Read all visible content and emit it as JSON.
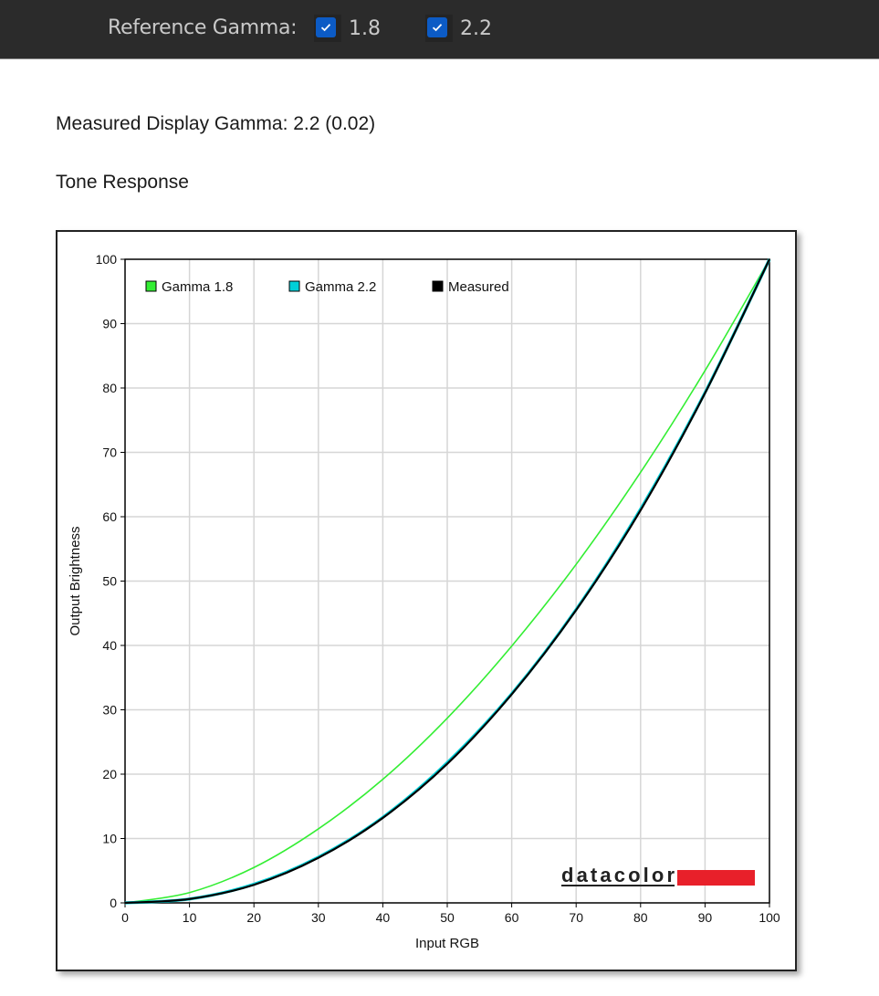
{
  "header": {
    "reference_label": "Reference Gamma:",
    "options": [
      {
        "label": "1.8",
        "checked": true
      },
      {
        "label": "2.2",
        "checked": true
      }
    ]
  },
  "measured_text": "Measured Display Gamma: 2.2 (0.02)",
  "section_title": "Tone Response",
  "logo_text": "datacolor",
  "colors": {
    "checkbox_accent": "#0c5bc5",
    "gamma18": "#33ee33",
    "gamma22": "#00d0d8",
    "measured": "#000000",
    "logo_bar": "#e8202a"
  },
  "chart_data": {
    "type": "line",
    "xlabel": "Input RGB",
    "ylabel": "Output Brightness",
    "xlim": [
      0,
      100
    ],
    "ylim": [
      0,
      100
    ],
    "xticks": [
      0,
      10,
      20,
      30,
      40,
      50,
      60,
      70,
      80,
      90,
      100
    ],
    "yticks": [
      0,
      10,
      20,
      30,
      40,
      50,
      60,
      70,
      80,
      90,
      100
    ],
    "grid": true,
    "legend_position": "top-left",
    "x": [
      0,
      10,
      20,
      30,
      40,
      50,
      60,
      70,
      80,
      90,
      100
    ],
    "series": [
      {
        "name": "Gamma 1.8",
        "color": "#33ee33",
        "values": [
          0,
          1.6,
          5.5,
          11.5,
          19.2,
          28.7,
          39.9,
          52.6,
          66.9,
          82.7,
          100
        ]
      },
      {
        "name": "Gamma 2.2",
        "color": "#00d0d8",
        "values": [
          0,
          0.6,
          2.9,
          7.1,
          13.3,
          21.8,
          32.5,
          45.6,
          61.2,
          79.3,
          100
        ]
      },
      {
        "name": "Measured",
        "color": "#000000",
        "values": [
          0,
          0.6,
          2.8,
          7.0,
          13.2,
          21.6,
          32.4,
          45.5,
          61.0,
          79.2,
          100
        ]
      }
    ]
  }
}
